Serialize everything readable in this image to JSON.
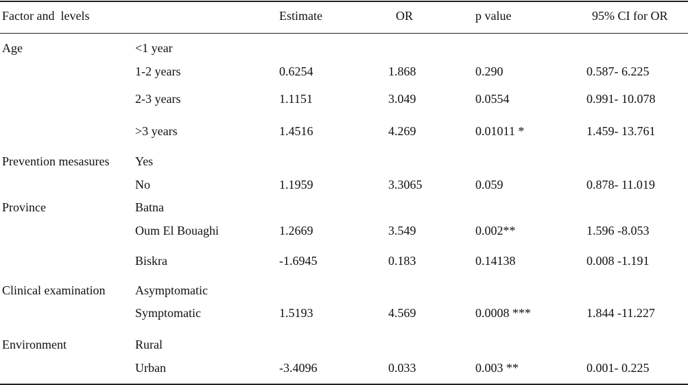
{
  "table": {
    "header": [
      "Factor and  levels",
      "Estimate",
      "OR",
      "p value",
      "95% CI for OR"
    ],
    "rows": [
      [
        "Age",
        "<1 year",
        null,
        null,
        null,
        null
      ],
      [
        null,
        "1-2 years",
        "0.6254",
        "1.868",
        "0.290",
        "0.587- 6.225"
      ],
      [
        null,
        "2-3 years",
        "1.1151",
        "3.049",
        "0.0554",
        "0.991- 10.078"
      ],
      [
        null,
        ">3 years",
        "1.4516",
        "4.269",
        "0.01011 *",
        "1.459- 13.761"
      ],
      [
        "Prevention mesasures",
        "Yes",
        null,
        null,
        null,
        null
      ],
      [
        null,
        "No",
        "1.1959",
        "3.3065",
        "0.059",
        "0.878- 11.019"
      ],
      [
        "Province",
        "Batna",
        null,
        null,
        null,
        null
      ],
      [
        null,
        "Oum El Bouaghi",
        "1.2669",
        "3.549",
        "0.002**",
        "1.596 -8.053"
      ],
      [
        null,
        "Biskra",
        "-1.6945",
        "0.183",
        "0.14138",
        "0.008 -1.191"
      ],
      [
        "Clinical examination",
        "Asymptomatic",
        null,
        null,
        null,
        null
      ],
      [
        null,
        "Symptomatic",
        "1.5193",
        "4.569",
        "0.0008 ***",
        "1.844 -11.227"
      ],
      [
        "Environment",
        "Rural",
        null,
        null,
        null,
        null
      ],
      [
        null,
        "Urban",
        "-3.4096",
        "0.033",
        "0.003 **",
        "0.001- 0.225"
      ]
    ]
  }
}
